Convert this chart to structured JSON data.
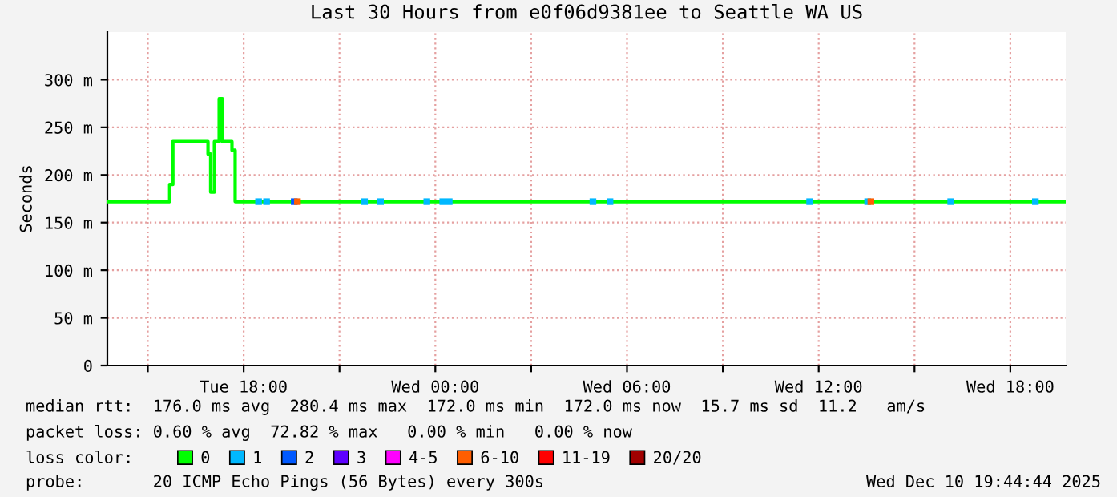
{
  "chart_data": {
    "type": "step",
    "title": "Last 30 Hours from e0f06d9381ee to Seattle WA US",
    "ylabel": "Seconds",
    "legend_title": "loss color:",
    "legend": "bottom",
    "grid": true,
    "line_style": "solid",
    "xlim": [
      "2025-12-09T13:44",
      "2025-12-10T19:44"
    ],
    "xticks": [
      {
        "value": "2025-12-09T15:00",
        "label": null
      },
      {
        "value": "2025-12-09T18:00",
        "label": "Tue 18:00"
      },
      {
        "value": "2025-12-09T21:00",
        "label": null
      },
      {
        "value": "2025-12-10T00:00",
        "label": "Wed 00:00"
      },
      {
        "value": "2025-12-10T03:00",
        "label": null
      },
      {
        "value": "2025-12-10T06:00",
        "label": "Wed 06:00"
      },
      {
        "value": "2025-12-10T09:00",
        "label": null
      },
      {
        "value": "2025-12-10T12:00",
        "label": "Wed 12:00"
      },
      {
        "value": "2025-12-10T15:00",
        "label": null
      },
      {
        "value": "2025-12-10T18:00",
        "label": "Wed 18:00"
      }
    ],
    "ylim": [
      0,
      350
    ],
    "yticks": [
      0,
      {
        "value": 50,
        "label": "50 m"
      },
      {
        "value": 100,
        "label": "100 m"
      },
      {
        "value": 150,
        "label": "150 m"
      },
      {
        "value": 200,
        "label": "200 m"
      },
      {
        "value": 250,
        "label": "250 m"
      },
      {
        "value": 300,
        "label": "300 m"
      }
    ],
    "series": [
      {
        "name": "0",
        "color": "#00ff00",
        "x": [
          "2025-12-09T13:44",
          "2025-12-09T15:38",
          "2025-12-09T15:41",
          "2025-12-09T15:47",
          "2025-12-09T16:53",
          "2025-12-09T16:58",
          "2025-12-09T17:05",
          "2025-12-09T17:14",
          "2025-12-09T17:20",
          "2025-12-09T17:38",
          "2025-12-09T17:44",
          "2025-12-10T19:44"
        ],
        "values": [
          172,
          172,
          190,
          235,
          222,
          182,
          235,
          280,
          235,
          226,
          172,
          172
        ]
      },
      {
        "name": "1",
        "type": "scatter",
        "marker": "square",
        "color": "#00b8ff",
        "x": [
          "2025-12-09T18:28",
          "2025-12-09T18:43",
          "2025-12-09T21:47",
          "2025-12-09T22:17",
          "2025-12-09T23:44",
          "2025-12-10T00:14",
          "2025-12-10T00:26",
          "2025-12-10T04:56",
          "2025-12-10T05:28",
          "2025-12-10T11:43",
          "2025-12-10T13:32",
          "2025-12-10T16:08",
          "2025-12-10T18:47"
        ],
        "values": [
          172,
          172,
          172,
          172,
          172,
          172,
          172,
          172,
          172,
          172,
          172,
          172,
          172
        ]
      },
      {
        "name": "2",
        "type": "scatter",
        "marker": "square",
        "color": "#0059ff",
        "x": [
          "2025-12-09T19:35"
        ],
        "values": [
          172
        ]
      },
      {
        "name": "3",
        "type": "scatter",
        "color": "#5e00ff"
      },
      {
        "name": "4-5",
        "type": "scatter",
        "color": "#ff00ff"
      },
      {
        "name": "6-10",
        "type": "scatter",
        "marker": "square",
        "color": "#ff5e00",
        "x": [
          "2025-12-09T19:41",
          "2025-12-10T13:38"
        ],
        "values": [
          172,
          172
        ]
      },
      {
        "name": "11-19",
        "type": "scatter",
        "color": "#ff0000"
      },
      {
        "name": "20/20",
        "type": "scatter",
        "color": "#a10000"
      }
    ],
    "annotations": [
      "median rtt:  176.0 ms avg  280.4 ms max  172.0 ms min  172.0 ms now  15.7 ms sd  11.2   am/s",
      "packet loss: 0.60 % avg  72.82 % max   0.00 % min   0.00 % now",
      "probe:       20 ICMP Echo Pings (56 Bytes) every 300s",
      "Wed Dec 10 19:44:44 2025"
    ]
  }
}
